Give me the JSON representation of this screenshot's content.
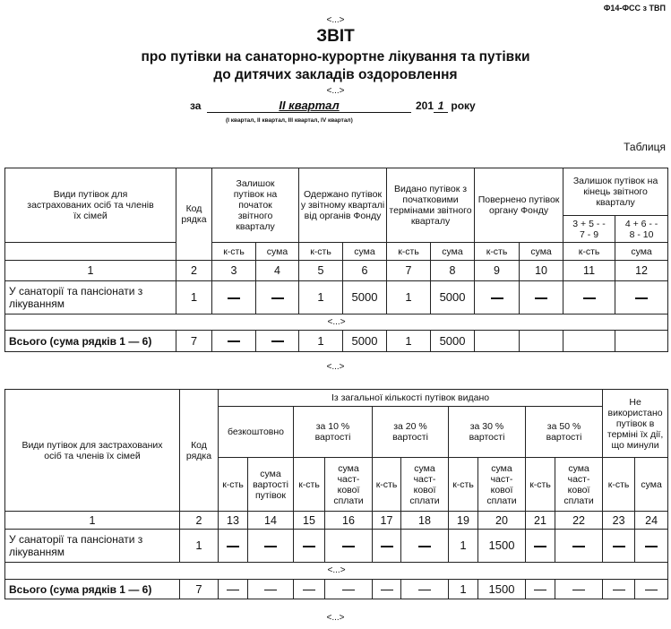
{
  "form_code": "Ф14-ФСС з ТВП",
  "ellipsis": "<...>",
  "title": "ЗВІТ",
  "subtitle_line1": "про путівки на санаторно-курортне лікування та путівки",
  "subtitle_line2": "до дитячих закладів оздоровлення",
  "period": {
    "prefix": "за",
    "value": "II квартал",
    "year_prefix": "201",
    "year_digit": "1",
    "suffix": "року",
    "hint": "(I квартал, II квартал, III квартал, IV квартал)"
  },
  "table_label": "Таблиця",
  "table1": {
    "headers": {
      "type": "Види путівок для застрахованих осіб та членів їх сімей",
      "code": "Код рядка",
      "g1": "Залишок путівок на початок звітного кварталу",
      "g2": "Одержано путівок у звітному кварталі від органів Фонду",
      "g3": "Видано путівок з початковими термінами звітного кварталу",
      "g4": "Повернено путівок органу Фонду",
      "g5": "Залишок путівок на кінець звітного кварталу",
      "f11": "3 + 5 - - 7 - 9",
      "f12": "4 + 6 - - 8 - 10",
      "qty": "к-сть",
      "sum": "сума"
    },
    "col_numbers": [
      "1",
      "2",
      "3",
      "4",
      "5",
      "6",
      "7",
      "8",
      "9",
      "10",
      "11",
      "12"
    ],
    "rows": [
      {
        "name": "У санаторії та пансіонати з лікуванням",
        "code": "1",
        "values": [
          "—",
          "—",
          "1",
          "5000",
          "1",
          "5000",
          "—",
          "—",
          "—",
          "—"
        ]
      },
      {
        "name": "Всього (сума рядків 1 — 6)",
        "code": "7",
        "values": [
          "—",
          "—",
          "1",
          "5000",
          "1",
          "5000",
          "",
          "",
          "",
          ""
        ]
      }
    ]
  },
  "table2": {
    "headers": {
      "type": "Види путівок для застрахованих осіб та членів їх сімей",
      "code": "Код рядка",
      "group": "Із загальної кількості путівок видано",
      "free": "безкоштовно",
      "p10": "за 10 % вартості",
      "p20": "за 20 % вартості",
      "p30": "за 30 % вартості",
      "p50": "за 50 % вартості",
      "unused": "Не використано путівок в терміні їх дії, що минули",
      "qty": "к-сть",
      "sum_cost": "сума вартості путівок",
      "sum_part": "сума част-кової сплати",
      "sum": "сума"
    },
    "col_numbers": [
      "1",
      "2",
      "13",
      "14",
      "15",
      "16",
      "17",
      "18",
      "19",
      "20",
      "21",
      "22",
      "23",
      "24"
    ],
    "rows": [
      {
        "name": "У санаторії та пансіонати з лікуванням",
        "code": "1",
        "values": [
          "—",
          "—",
          "—",
          "—",
          "—",
          "—",
          "1",
          "1500",
          "—",
          "—",
          "—",
          "—"
        ]
      },
      {
        "name": "Всього (сума рядків 1 — 6)",
        "code": "7",
        "values": [
          "—",
          "—",
          "—",
          "—",
          "—",
          "—",
          "1",
          "1500",
          "—",
          "—",
          "—",
          "—"
        ]
      }
    ]
  }
}
